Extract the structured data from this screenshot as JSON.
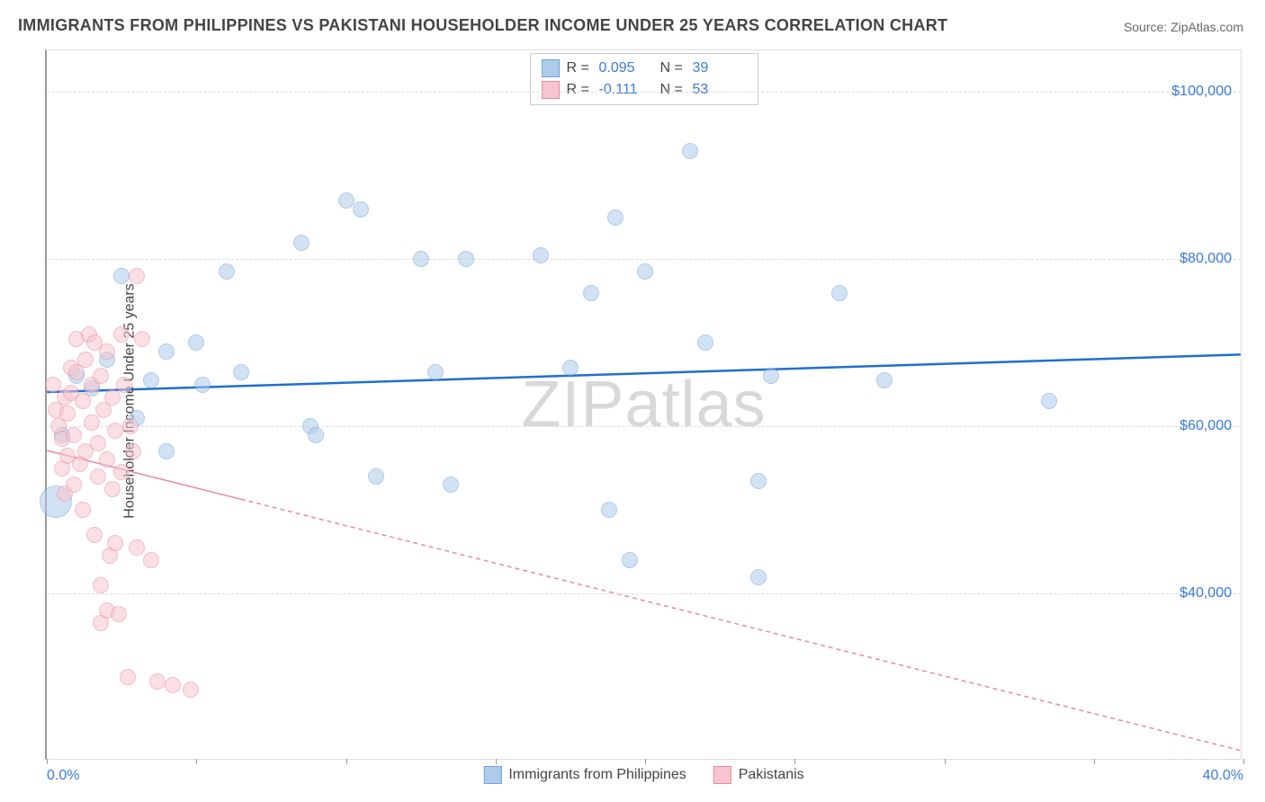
{
  "title": "IMMIGRANTS FROM PHILIPPINES VS PAKISTANI HOUSEHOLDER INCOME UNDER 25 YEARS CORRELATION CHART",
  "source_label": "Source: ZipAtlas.com",
  "ylabel": "Householder Income Under 25 years",
  "watermark": "ZIPatlas",
  "chart": {
    "type": "scatter",
    "xlim": [
      0,
      40
    ],
    "ylim": [
      20000,
      105000
    ],
    "background_color": "#ffffff",
    "grid_color": "#dddddd",
    "xtick_positions": [
      0,
      5,
      10,
      15,
      20,
      25,
      30,
      35,
      40
    ],
    "xtick_labels": {
      "0": "0.0%",
      "40": "40.0%"
    },
    "ytick_positions": [
      40000,
      60000,
      80000,
      100000
    ],
    "ytick_labels": [
      "$40,000",
      "$60,000",
      "$80,000",
      "$100,000"
    ],
    "label_fontsize": 16,
    "title_fontsize": 18,
    "axis_label_color": "#3a7ad9",
    "point_radius": 9,
    "point_opacity": 0.55,
    "series": [
      {
        "name": "Immigrants from Philippines",
        "fill": "#aecbea",
        "stroke": "#6fa3dd",
        "reg_color": "#1f6fd1",
        "reg_dash": "none",
        "reg_width": 2.5,
        "reg_y0_at_x0": 64000,
        "reg_y1_at_x40": 68500,
        "stats": {
          "R": "0.095",
          "N": "39"
        },
        "points": [
          [
            0.3,
            51000,
            18
          ],
          [
            0.5,
            59000,
            9
          ],
          [
            1.0,
            66000,
            9
          ],
          [
            1.5,
            64500,
            9
          ],
          [
            2.0,
            68000,
            9
          ],
          [
            2.5,
            78000,
            9
          ],
          [
            3.0,
            61000,
            9
          ],
          [
            3.5,
            65500,
            9
          ],
          [
            4.0,
            69000,
            9
          ],
          [
            4.0,
            57000,
            9
          ],
          [
            5.0,
            70000,
            9
          ],
          [
            5.2,
            65000,
            9
          ],
          [
            6.0,
            78500,
            9
          ],
          [
            6.5,
            66500,
            9
          ],
          [
            8.5,
            82000,
            9
          ],
          [
            8.8,
            60000,
            9
          ],
          [
            9.0,
            59000,
            9
          ],
          [
            10.0,
            87000,
            9
          ],
          [
            10.5,
            86000,
            9
          ],
          [
            11.0,
            54000,
            9
          ],
          [
            12.5,
            80000,
            9
          ],
          [
            13.0,
            66500,
            9
          ],
          [
            13.5,
            53000,
            9
          ],
          [
            14.0,
            80000,
            9
          ],
          [
            16.5,
            80500,
            9
          ],
          [
            17.5,
            67000,
            9
          ],
          [
            18.2,
            76000,
            9
          ],
          [
            18.8,
            50000,
            9
          ],
          [
            19.0,
            85000,
            9
          ],
          [
            19.5,
            44000,
            9
          ],
          [
            20.0,
            78500,
            9
          ],
          [
            21.5,
            93000,
            9
          ],
          [
            22.0,
            70000,
            9
          ],
          [
            23.8,
            53500,
            9
          ],
          [
            23.8,
            42000,
            9
          ],
          [
            24.2,
            66000,
            9
          ],
          [
            26.5,
            76000,
            9
          ],
          [
            28.0,
            65500,
            9
          ],
          [
            33.5,
            63000,
            9
          ]
        ]
      },
      {
        "name": "Pakistanis",
        "fill": "#f6c5cf",
        "stroke": "#e98aa0",
        "reg_color": "#e98aa0",
        "reg_dash": "5,4",
        "reg_width": 1.5,
        "reg_y0_at_x0": 57000,
        "reg_y1_at_x40": 21000,
        "reg_solid_until_x": 6.5,
        "stats": {
          "R": "-0.111",
          "N": "53"
        },
        "points": [
          [
            0.2,
            65000,
            9
          ],
          [
            0.3,
            62000,
            9
          ],
          [
            0.4,
            60000,
            9
          ],
          [
            0.5,
            58500,
            9
          ],
          [
            0.5,
            55000,
            9
          ],
          [
            0.6,
            63500,
            9
          ],
          [
            0.6,
            52000,
            9
          ],
          [
            0.7,
            56500,
            9
          ],
          [
            0.7,
            61500,
            9
          ],
          [
            0.8,
            67000,
            9
          ],
          [
            0.8,
            64000,
            9
          ],
          [
            0.9,
            59000,
            9
          ],
          [
            0.9,
            53000,
            9
          ],
          [
            1.0,
            70500,
            9
          ],
          [
            1.0,
            66500,
            9
          ],
          [
            1.1,
            55500,
            9
          ],
          [
            1.2,
            63000,
            9
          ],
          [
            1.2,
            50000,
            9
          ],
          [
            1.3,
            68000,
            9
          ],
          [
            1.3,
            57000,
            9
          ],
          [
            1.4,
            71000,
            9
          ],
          [
            1.5,
            65000,
            9
          ],
          [
            1.5,
            60500,
            9
          ],
          [
            1.6,
            47000,
            9
          ],
          [
            1.6,
            70000,
            9
          ],
          [
            1.7,
            54000,
            9
          ],
          [
            1.7,
            58000,
            9
          ],
          [
            1.8,
            41000,
            9
          ],
          [
            1.8,
            66000,
            9
          ],
          [
            1.8,
            36500,
            9
          ],
          [
            1.9,
            62000,
            9
          ],
          [
            2.0,
            69000,
            9
          ],
          [
            2.0,
            56000,
            9
          ],
          [
            2.0,
            38000,
            9
          ],
          [
            2.1,
            44500,
            9
          ],
          [
            2.2,
            52500,
            9
          ],
          [
            2.2,
            63500,
            9
          ],
          [
            2.3,
            59500,
            9
          ],
          [
            2.3,
            46000,
            9
          ],
          [
            2.4,
            37500,
            9
          ],
          [
            2.5,
            71000,
            9
          ],
          [
            2.5,
            54500,
            9
          ],
          [
            2.6,
            65000,
            9
          ],
          [
            2.7,
            30000,
            9
          ],
          [
            2.8,
            60000,
            9
          ],
          [
            2.9,
            57000,
            9
          ],
          [
            3.0,
            78000,
            9
          ],
          [
            3.0,
            45500,
            9
          ],
          [
            3.2,
            70500,
            9
          ],
          [
            3.5,
            44000,
            9
          ],
          [
            3.7,
            29500,
            9
          ],
          [
            4.2,
            29000,
            9
          ],
          [
            4.8,
            28500,
            9
          ]
        ]
      }
    ]
  },
  "legend_bottom": {
    "items": [
      {
        "label": "Immigrants from Philippines",
        "fill": "#aecbea",
        "stroke": "#6fa3dd"
      },
      {
        "label": "Pakistanis",
        "fill": "#f6c5cf",
        "stroke": "#e98aa0"
      }
    ]
  }
}
